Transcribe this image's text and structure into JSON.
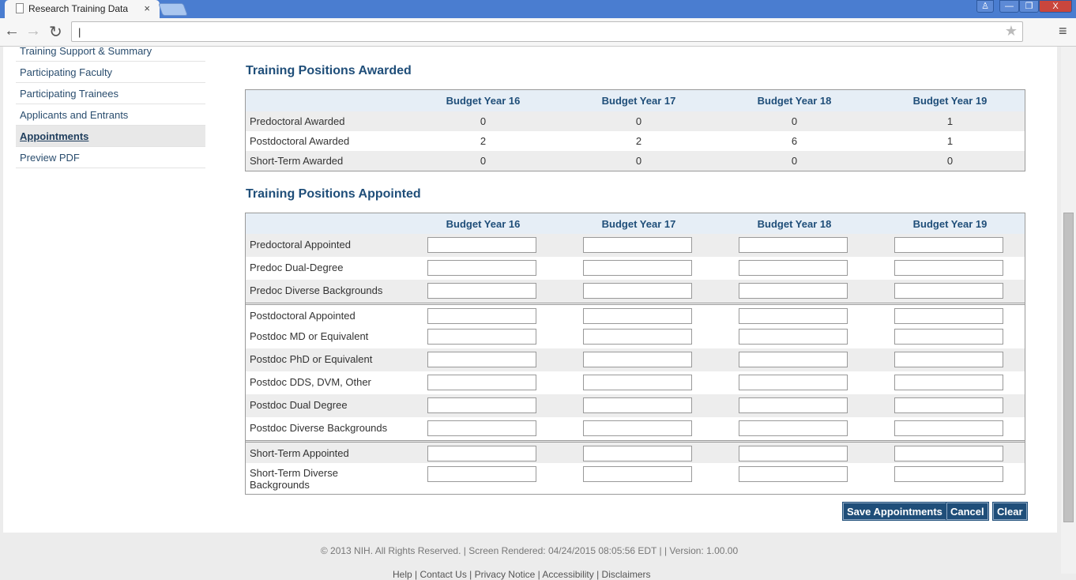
{
  "browser": {
    "tab_title": "Research Training Data",
    "tab_close": "×",
    "address": "|",
    "win_buttons": [
      "♙",
      "—",
      "❐",
      "X"
    ]
  },
  "sidebar": {
    "items": [
      {
        "label": "Training Support & Summary"
      },
      {
        "label": "Participating Faculty"
      },
      {
        "label": "Participating Trainees"
      },
      {
        "label": "Applicants and Entrants"
      },
      {
        "label": "Appointments",
        "active": true
      },
      {
        "label": "Preview PDF"
      }
    ]
  },
  "awarded": {
    "title": "Training Positions Awarded",
    "columns": [
      "Budget Year 16",
      "Budget Year 17",
      "Budget Year 18",
      "Budget Year 19"
    ],
    "rows": [
      {
        "label": "Predoctoral Awarded",
        "values": [
          "0",
          "0",
          "0",
          "1"
        ]
      },
      {
        "label": "Postdoctoral Awarded",
        "values": [
          "2",
          "2",
          "6",
          "1"
        ]
      },
      {
        "label": "Short-Term Awarded",
        "values": [
          "0",
          "0",
          "0",
          "0"
        ]
      }
    ]
  },
  "appointed": {
    "title": "Training Positions Appointed",
    "columns": [
      "Budget Year 16",
      "Budget Year 17",
      "Budget Year 18",
      "Budget Year 19"
    ],
    "groups": [
      [
        "Predoctoral Appointed",
        "Predoc Dual-Degree",
        "Predoc Diverse Backgrounds"
      ],
      [
        "Postdoctoral Appointed",
        "Postdoc MD or Equivalent",
        "Postdoc PhD or Equivalent",
        "Postdoc DDS, DVM, Other",
        "Postdoc Dual Degree",
        "Postdoc Diverse Backgrounds"
      ],
      [
        "Short-Term Appointed",
        "Short-Term Diverse Backgrounds"
      ]
    ]
  },
  "buttons": {
    "save": "Save Appointments",
    "cancel": "Cancel",
    "clear": "Clear"
  },
  "footer": {
    "text": "© 2013 NIH. All Rights Reserved. | Screen Rendered: 04/24/2015 08:05:56 EDT | | Version: 1.00.00",
    "links": "Help | Contact Us | Privacy Notice | Accessibility | Disclaimers"
  }
}
